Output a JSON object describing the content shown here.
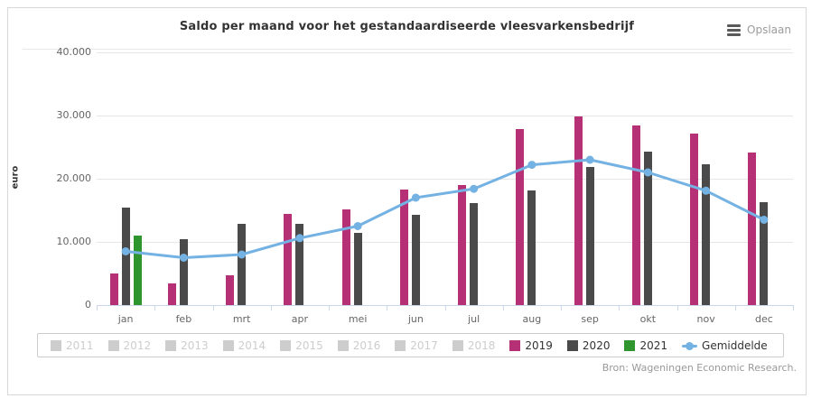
{
  "header": {
    "title": "Saldo per maand voor het gestandaardiseerde vleesvarkensbedrijf",
    "save_label": "Opslaan"
  },
  "chart_data": {
    "type": "bar",
    "title": "Saldo per maand voor het gestandaardiseerde vleesvarkensbedrijf",
    "xlabel": "",
    "ylabel": "euro",
    "ylim": [
      0,
      40000
    ],
    "ytick_interval": 10000,
    "ytick_labels": [
      "0",
      "10.000",
      "20.000",
      "30.000",
      "40.000"
    ],
    "grid": true,
    "legend_position": "bottom",
    "categories": [
      "jan",
      "feb",
      "mrt",
      "apr",
      "mei",
      "jun",
      "jul",
      "aug",
      "sep",
      "okt",
      "nov",
      "dec"
    ],
    "series": [
      {
        "name": "2019",
        "type": "bar",
        "color": "#b63076",
        "values": [
          5000,
          3500,
          4700,
          14400,
          15200,
          18300,
          19000,
          27900,
          29800,
          28500,
          27200,
          24100
        ]
      },
      {
        "name": "2020",
        "type": "bar",
        "color": "#4a4a4a",
        "values": [
          15500,
          10400,
          12900,
          12900,
          11400,
          14300,
          16200,
          18100,
          21800,
          24300,
          22300,
          16300
        ]
      },
      {
        "name": "2021",
        "type": "bar",
        "color": "#2f962f",
        "values": [
          11000,
          null,
          null,
          null,
          null,
          null,
          null,
          null,
          null,
          null,
          null,
          null
        ]
      },
      {
        "name": "Gemiddelde",
        "type": "line",
        "color": "#73b2e3",
        "values": [
          8500,
          7500,
          8000,
          10600,
          12500,
          17000,
          18400,
          22200,
          23000,
          21000,
          18100,
          13500
        ]
      }
    ]
  },
  "legend": {
    "items": [
      {
        "label": "2011",
        "type": "square",
        "color": "#cdcdcd",
        "disabled": true
      },
      {
        "label": "2012",
        "type": "square",
        "color": "#cdcdcd",
        "disabled": true
      },
      {
        "label": "2013",
        "type": "square",
        "color": "#cdcdcd",
        "disabled": true
      },
      {
        "label": "2014",
        "type": "square",
        "color": "#cdcdcd",
        "disabled": true
      },
      {
        "label": "2015",
        "type": "square",
        "color": "#cdcdcd",
        "disabled": true
      },
      {
        "label": "2016",
        "type": "square",
        "color": "#cdcdcd",
        "disabled": true
      },
      {
        "label": "2017",
        "type": "square",
        "color": "#cdcdcd",
        "disabled": true
      },
      {
        "label": "2018",
        "type": "square",
        "color": "#cdcdcd",
        "disabled": true
      },
      {
        "label": "2019",
        "type": "square",
        "color": "#b63076",
        "disabled": false
      },
      {
        "label": "2020",
        "type": "square",
        "color": "#4a4a4a",
        "disabled": false
      },
      {
        "label": "2021",
        "type": "square",
        "color": "#2f962f",
        "disabled": false
      },
      {
        "label": "Gemiddelde",
        "type": "line",
        "color": "#73b2e3",
        "disabled": false
      }
    ]
  },
  "footer": {
    "source": "Bron: Wageningen Economic Research."
  }
}
